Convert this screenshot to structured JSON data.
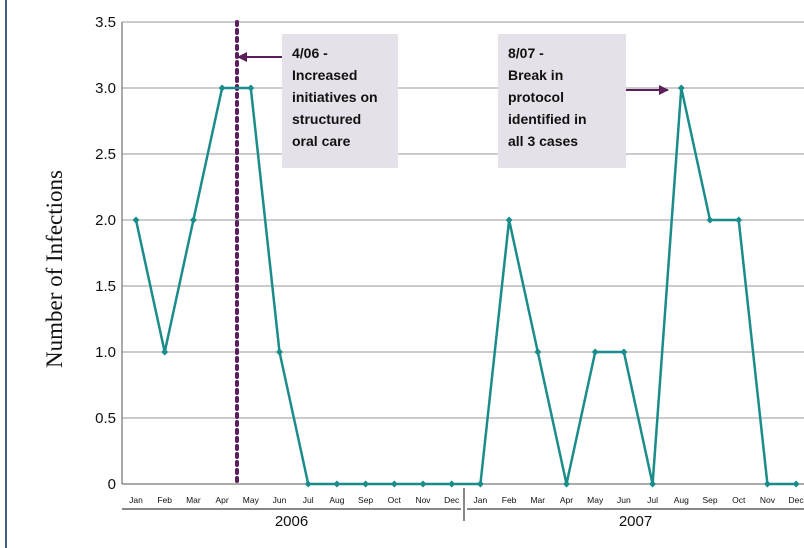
{
  "chart_data": {
    "type": "line",
    "ylabel": "Number of Infections",
    "ylim": [
      0,
      3.5
    ],
    "yticks": [
      "0",
      "0.5",
      "1.0",
      "1.5",
      "2.0",
      "2.5",
      "3.0",
      "3.5"
    ],
    "categories": [
      "Jan",
      "Feb",
      "Mar",
      "Apr",
      "May",
      "Jun",
      "Jul",
      "Aug",
      "Sep",
      "Oct",
      "Nov",
      "Dec",
      "Jan",
      "Feb",
      "Mar",
      "Apr",
      "May",
      "Jun",
      "Jul",
      "Aug",
      "Sep",
      "Oct",
      "Nov",
      "Dec"
    ],
    "years": [
      "2006",
      "2007"
    ],
    "values": [
      2,
      1,
      2,
      3,
      3,
      1,
      0,
      0,
      0,
      0,
      0,
      0,
      0,
      2,
      1,
      0,
      1,
      1,
      0,
      3,
      2,
      2,
      0,
      0
    ],
    "grid": true,
    "colors": {
      "line": "#1a8c8a",
      "marker": "#1a8c8a",
      "grid": "#9a9a9a",
      "event_line": "#5a1f5a",
      "annotation_bg": "#e6e1e8",
      "arrow": "#5a1f5a",
      "frame": "#3f5f83"
    },
    "annotations": [
      {
        "lines": [
          "4/06 -",
          "Increased",
          "initiatives on",
          "structured",
          "oral care"
        ]
      },
      {
        "lines": [
          "8/07 -",
          "Break in",
          "protocol",
          "identified in",
          "all 3 cases"
        ]
      }
    ]
  }
}
